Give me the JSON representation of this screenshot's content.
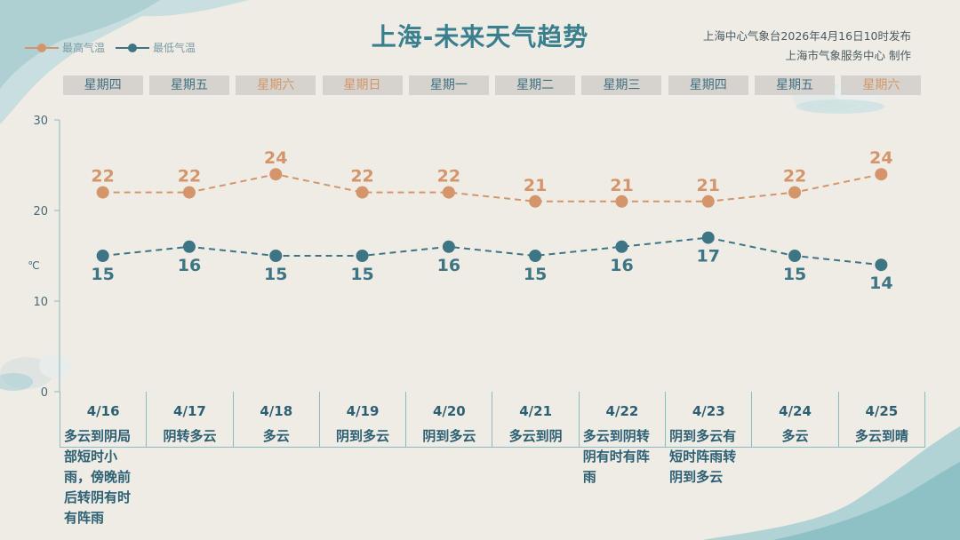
{
  "title": "上海-未来天气趋势",
  "publisher": "上海中心气象台2026年4月16日10时发布",
  "maker": "上海市气象服务中心  制作",
  "legend": {
    "high": "最高气温",
    "low": "最低气温"
  },
  "colors": {
    "high": "#d4956a",
    "low": "#3d7585",
    "accent": "#3a7f8e",
    "weekend": "#d4956a",
    "weekday": "#3f6f80"
  },
  "weekdays": [
    "星期四",
    "星期五",
    "星期六",
    "星期日",
    "星期一",
    "星期二",
    "星期三",
    "星期四",
    "星期五",
    "星期六"
  ],
  "weekend_flags": [
    false,
    false,
    true,
    true,
    false,
    false,
    false,
    false,
    false,
    true
  ],
  "days": [
    {
      "date": "4/16",
      "condition": "多云到阴局部短时小雨，傍晚前后转阴有时有阵雨"
    },
    {
      "date": "4/17",
      "condition": "阴转多云"
    },
    {
      "date": "4/18",
      "condition": "多云"
    },
    {
      "date": "4/19",
      "condition": "阴到多云"
    },
    {
      "date": "4/20",
      "condition": "阴到多云"
    },
    {
      "date": "4/21",
      "condition": "多云到阴"
    },
    {
      "date": "4/22",
      "condition": "多云到阴转阴有时有阵雨"
    },
    {
      "date": "4/23",
      "condition": "阴到多云有短时阵雨转阴到多云"
    },
    {
      "date": "4/24",
      "condition": "多云"
    },
    {
      "date": "4/25",
      "condition": "多云到晴"
    }
  ],
  "chart_data": {
    "type": "line",
    "title": "上海-未来天气趋势",
    "categories": [
      "4/16",
      "4/17",
      "4/18",
      "4/19",
      "4/20",
      "4/21",
      "4/22",
      "4/23",
      "4/24",
      "4/25"
    ],
    "series": [
      {
        "name": "最高气温",
        "values": [
          22,
          22,
          24,
          22,
          22,
          21,
          21,
          21,
          22,
          24
        ]
      },
      {
        "name": "最低气温",
        "values": [
          15,
          16,
          15,
          15,
          16,
          15,
          16,
          17,
          15,
          14
        ]
      }
    ],
    "ylabel": "℃",
    "ylim": [
      0,
      30
    ],
    "yticks": [
      0,
      10,
      20,
      30
    ],
    "grid": false,
    "legend": "top-left"
  }
}
